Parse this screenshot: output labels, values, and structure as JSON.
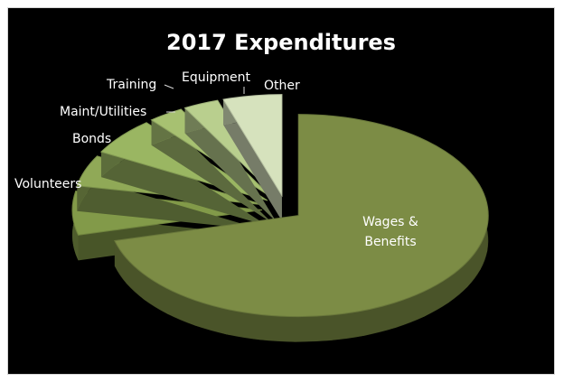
{
  "chart_data": {
    "type": "pie",
    "title": "2017 Expenditures",
    "slices": [
      {
        "label": "Wages & Benefits",
        "value": 71,
        "color": "#7c8c45"
      },
      {
        "label": "Volunteers",
        "value": 7,
        "color": "#829a49"
      },
      {
        "label": "Bonds",
        "value": 5,
        "color": "#90a957"
      },
      {
        "label": "Maint/Utilities",
        "value": 6,
        "color": "#9ab662"
      },
      {
        "label": "Training",
        "value": 3,
        "color": "#a7c171"
      },
      {
        "label": "Equipment",
        "value": 3,
        "color": "#b9cf8e"
      },
      {
        "label": "Other",
        "value": 5,
        "color": "#d6e2bd"
      }
    ],
    "legend": "none",
    "style": "3d-exploded"
  }
}
